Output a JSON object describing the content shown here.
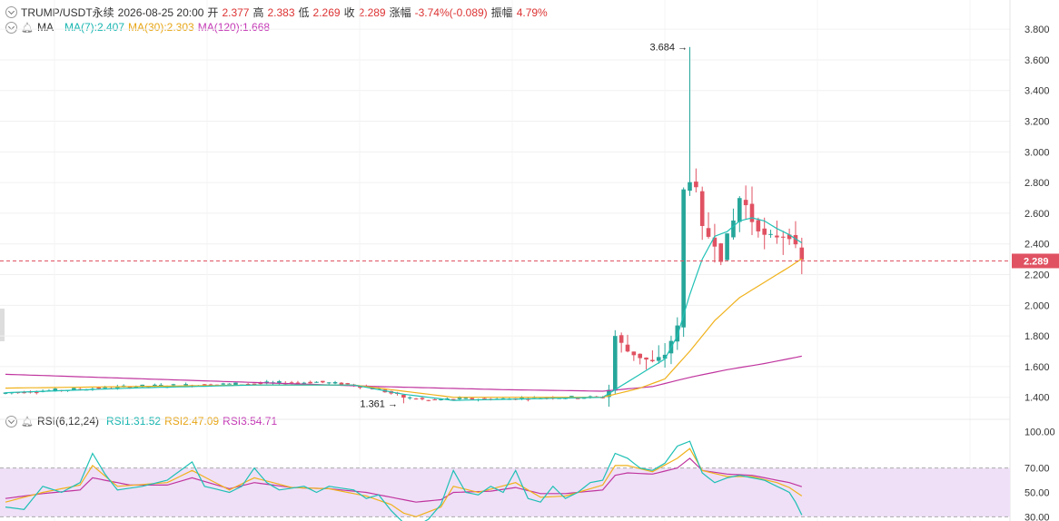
{
  "header": {
    "symbol": "TRUMP/USDT永续",
    "datetime": "2026-08-25 20:00",
    "open_label": "开",
    "open": "2.377",
    "high_label": "高",
    "high": "2.383",
    "low_label": "低",
    "low": "2.269",
    "close_label": "收",
    "close": "2.289",
    "change_label": "涨幅",
    "change": "-3.74%(-0.089)",
    "amp_label": "振幅",
    "amp": "4.79%"
  },
  "ma_legend": {
    "name": "MA",
    "ma7": "MA(7):2.407",
    "ma30": "MA(30):2.303",
    "ma120": "MA(120):1.668"
  },
  "rsi_legend": {
    "name": "RSI(6,12,24)",
    "rsi1": "RSI1:31.52",
    "rsi2": "RSI2:47.09",
    "rsi3": "RSI3:54.71"
  },
  "colors": {
    "up": "#26a69a",
    "down": "#e05262",
    "ma7": "#1fc0b5",
    "ma30": "#f0b21c",
    "ma120": "#c0359f",
    "rsi_band": "#efe0f7"
  },
  "price_axis": {
    "ticks": [
      "3.800",
      "3.600",
      "3.400",
      "3.200",
      "3.000",
      "2.800",
      "2.600",
      "2.400",
      "2.200",
      "2.000",
      "1.800",
      "1.600",
      "1.400"
    ],
    "range": [
      1.28,
      3.86
    ],
    "current_price": "2.289"
  },
  "rsi_axis": {
    "ticks": [
      "100.00",
      "70.00",
      "50.00",
      "30.00"
    ],
    "range": [
      28,
      104
    ],
    "band": [
      30,
      70
    ]
  },
  "annotations": {
    "max_label": "3.684",
    "min_label": "1.361"
  },
  "chart_data": {
    "type": "candlestick",
    "price": {
      "x_count": 130,
      "close_anchors": [
        [
          0,
          1.43
        ],
        [
          10,
          1.45
        ],
        [
          20,
          1.47
        ],
        [
          30,
          1.48
        ],
        [
          40,
          1.49
        ],
        [
          50,
          1.5
        ],
        [
          56,
          1.48
        ],
        [
          60,
          1.45
        ],
        [
          64,
          1.4
        ],
        [
          68,
          1.38
        ],
        [
          72,
          1.39
        ],
        [
          80,
          1.39
        ],
        [
          88,
          1.4
        ],
        [
          96,
          1.4
        ],
        [
          97,
          1.45
        ],
        [
          98,
          1.8
        ],
        [
          100,
          1.7
        ],
        [
          102,
          1.66
        ],
        [
          104,
          1.63
        ],
        [
          106,
          1.68
        ],
        [
          108,
          1.86
        ],
        [
          109,
          2.75
        ],
        [
          110,
          2.82
        ],
        [
          111,
          2.75
        ],
        [
          112,
          2.5
        ],
        [
          113,
          2.45
        ],
        [
          114,
          2.4
        ],
        [
          115,
          2.3
        ],
        [
          116,
          2.45
        ],
        [
          117,
          2.55
        ],
        [
          118,
          2.7
        ],
        [
          119,
          2.65
        ],
        [
          120,
          2.55
        ],
        [
          121,
          2.5
        ],
        [
          122,
          2.45
        ],
        [
          124,
          2.45
        ],
        [
          126,
          2.45
        ],
        [
          127,
          2.38
        ],
        [
          128,
          2.289
        ]
      ],
      "spike_index": 110,
      "spike_high": 3.684,
      "min_index": 64,
      "min_low": 1.361,
      "ma7_anchors": [
        [
          0,
          1.43
        ],
        [
          20,
          1.46
        ],
        [
          40,
          1.48
        ],
        [
          56,
          1.48
        ],
        [
          64,
          1.42
        ],
        [
          72,
          1.38
        ],
        [
          96,
          1.4
        ],
        [
          98,
          1.45
        ],
        [
          102,
          1.55
        ],
        [
          106,
          1.65
        ],
        [
          108,
          1.8
        ],
        [
          110,
          2.07
        ],
        [
          112,
          2.3
        ],
        [
          114,
          2.45
        ],
        [
          116,
          2.48
        ],
        [
          118,
          2.55
        ],
        [
          120,
          2.57
        ],
        [
          122,
          2.55
        ],
        [
          124,
          2.5
        ],
        [
          126,
          2.46
        ],
        [
          128,
          2.407
        ]
      ],
      "ma30_anchors": [
        [
          0,
          1.46
        ],
        [
          20,
          1.47
        ],
        [
          40,
          1.48
        ],
        [
          56,
          1.48
        ],
        [
          64,
          1.44
        ],
        [
          72,
          1.4
        ],
        [
          96,
          1.4
        ],
        [
          98,
          1.42
        ],
        [
          102,
          1.46
        ],
        [
          106,
          1.52
        ],
        [
          110,
          1.7
        ],
        [
          114,
          1.9
        ],
        [
          118,
          2.05
        ],
        [
          122,
          2.15
        ],
        [
          126,
          2.25
        ],
        [
          128,
          2.303
        ]
      ],
      "ma120_anchors": [
        [
          0,
          1.55
        ],
        [
          30,
          1.51
        ],
        [
          60,
          1.47
        ],
        [
          80,
          1.45
        ],
        [
          96,
          1.44
        ],
        [
          104,
          1.47
        ],
        [
          110,
          1.53
        ],
        [
          116,
          1.58
        ],
        [
          122,
          1.62
        ],
        [
          128,
          1.668
        ]
      ]
    },
    "rsi": {
      "rsi1_anchors": [
        [
          0,
          38
        ],
        [
          3,
          36
        ],
        [
          6,
          55
        ],
        [
          9,
          50
        ],
        [
          12,
          58
        ],
        [
          14,
          82
        ],
        [
          16,
          65
        ],
        [
          18,
          52
        ],
        [
          22,
          55
        ],
        [
          26,
          60
        ],
        [
          30,
          75
        ],
        [
          32,
          55
        ],
        [
          36,
          50
        ],
        [
          38,
          55
        ],
        [
          40,
          70
        ],
        [
          42,
          58
        ],
        [
          44,
          52
        ],
        [
          48,
          55
        ],
        [
          50,
          50
        ],
        [
          52,
          55
        ],
        [
          56,
          52
        ],
        [
          58,
          45
        ],
        [
          60,
          48
        ],
        [
          62,
          35
        ],
        [
          64,
          25
        ],
        [
          66,
          22
        ],
        [
          68,
          28
        ],
        [
          70,
          40
        ],
        [
          72,
          68
        ],
        [
          74,
          50
        ],
        [
          76,
          48
        ],
        [
          78,
          55
        ],
        [
          80,
          50
        ],
        [
          82,
          68
        ],
        [
          84,
          45
        ],
        [
          86,
          42
        ],
        [
          88,
          55
        ],
        [
          90,
          45
        ],
        [
          92,
          50
        ],
        [
          94,
          58
        ],
        [
          96,
          60
        ],
        [
          98,
          82
        ],
        [
          100,
          78
        ],
        [
          102,
          70
        ],
        [
          104,
          68
        ],
        [
          106,
          74
        ],
        [
          108,
          88
        ],
        [
          110,
          92
        ],
        [
          112,
          66
        ],
        [
          114,
          58
        ],
        [
          116,
          62
        ],
        [
          118,
          64
        ],
        [
          120,
          62
        ],
        [
          122,
          60
        ],
        [
          124,
          55
        ],
        [
          126,
          50
        ],
        [
          127,
          42
        ],
        [
          128,
          31.52
        ]
      ],
      "rsi2_anchors": [
        [
          0,
          42
        ],
        [
          6,
          50
        ],
        [
          12,
          56
        ],
        [
          14,
          72
        ],
        [
          18,
          55
        ],
        [
          26,
          58
        ],
        [
          30,
          68
        ],
        [
          36,
          52
        ],
        [
          40,
          62
        ],
        [
          46,
          54
        ],
        [
          52,
          53
        ],
        [
          58,
          47
        ],
        [
          62,
          40
        ],
        [
          64,
          33
        ],
        [
          66,
          30
        ],
        [
          70,
          38
        ],
        [
          72,
          55
        ],
        [
          76,
          50
        ],
        [
          82,
          58
        ],
        [
          86,
          46
        ],
        [
          90,
          47
        ],
        [
          96,
          56
        ],
        [
          98,
          72
        ],
        [
          100,
          72
        ],
        [
          104,
          67
        ],
        [
          108,
          78
        ],
        [
          110,
          86
        ],
        [
          112,
          68
        ],
        [
          116,
          63
        ],
        [
          120,
          63
        ],
        [
          124,
          58
        ],
        [
          126,
          54
        ],
        [
          128,
          47.09
        ]
      ],
      "rsi3_anchors": [
        [
          0,
          45
        ],
        [
          6,
          49
        ],
        [
          12,
          52
        ],
        [
          14,
          62
        ],
        [
          20,
          56
        ],
        [
          26,
          56
        ],
        [
          30,
          62
        ],
        [
          36,
          53
        ],
        [
          40,
          58
        ],
        [
          46,
          54
        ],
        [
          52,
          53
        ],
        [
          58,
          50
        ],
        [
          62,
          46
        ],
        [
          66,
          42
        ],
        [
          70,
          44
        ],
        [
          72,
          50
        ],
        [
          78,
          51
        ],
        [
          82,
          54
        ],
        [
          86,
          49
        ],
        [
          90,
          49
        ],
        [
          96,
          52
        ],
        [
          98,
          64
        ],
        [
          100,
          66
        ],
        [
          104,
          65
        ],
        [
          108,
          70
        ],
        [
          110,
          78
        ],
        [
          112,
          68
        ],
        [
          116,
          65
        ],
        [
          120,
          64
        ],
        [
          124,
          60
        ],
        [
          126,
          58
        ],
        [
          128,
          54.71
        ]
      ]
    }
  }
}
